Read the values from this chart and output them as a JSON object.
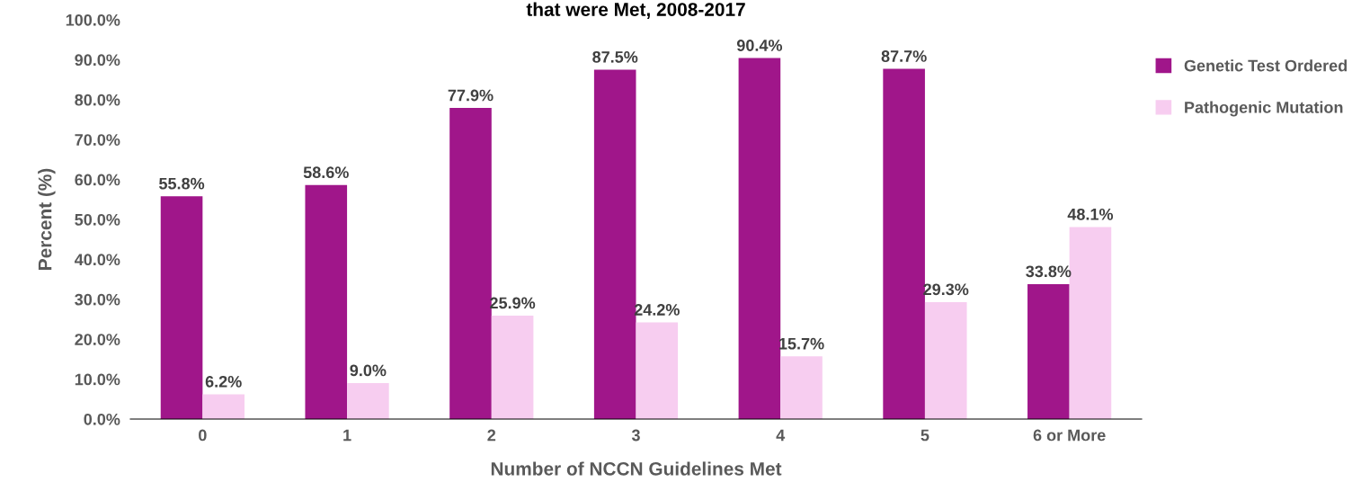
{
  "chart_data": {
    "type": "bar",
    "title": "that were Met, 2008-2017",
    "xlabel": "Number of NCCN Guidelines Met",
    "ylabel": "Percent (%)",
    "categories": [
      "0",
      "1",
      "2",
      "3",
      "4",
      "5",
      "6 or More"
    ],
    "series": [
      {
        "name": "Genetic Test Ordered",
        "color": "#a0168a",
        "values": [
          55.8,
          58.6,
          77.9,
          87.5,
          90.4,
          87.7,
          33.8
        ],
        "value_labels": [
          "55.8%",
          "58.6%",
          "77.9%",
          "87.5%",
          "90.4%",
          "87.7%",
          "33.8%"
        ]
      },
      {
        "name": "Pathogenic Mutation",
        "color": "#f7cdf0",
        "values": [
          6.2,
          9.0,
          25.9,
          24.2,
          15.7,
          29.3,
          48.1
        ],
        "value_labels": [
          "6.2%",
          "9.0%",
          "25.9%",
          "24.2%",
          "15.7%",
          "29.3%",
          "48.1%"
        ]
      }
    ],
    "ylim": [
      0,
      100
    ],
    "yticks": [
      {
        "value": 0,
        "label": "0.0%"
      },
      {
        "value": 10,
        "label": "10.0%"
      },
      {
        "value": 20,
        "label": "20.0%"
      },
      {
        "value": 30,
        "label": "30.0%"
      },
      {
        "value": 40,
        "label": "40.0%"
      },
      {
        "value": 50,
        "label": "50.0%"
      },
      {
        "value": 60,
        "label": "60.0%"
      },
      {
        "value": 70,
        "label": "70.0%"
      },
      {
        "value": 80,
        "label": "80.0%"
      },
      {
        "value": 90,
        "label": "90.0%"
      },
      {
        "value": 100,
        "label": "100.0%"
      }
    ],
    "grid": false,
    "legend": "right"
  }
}
